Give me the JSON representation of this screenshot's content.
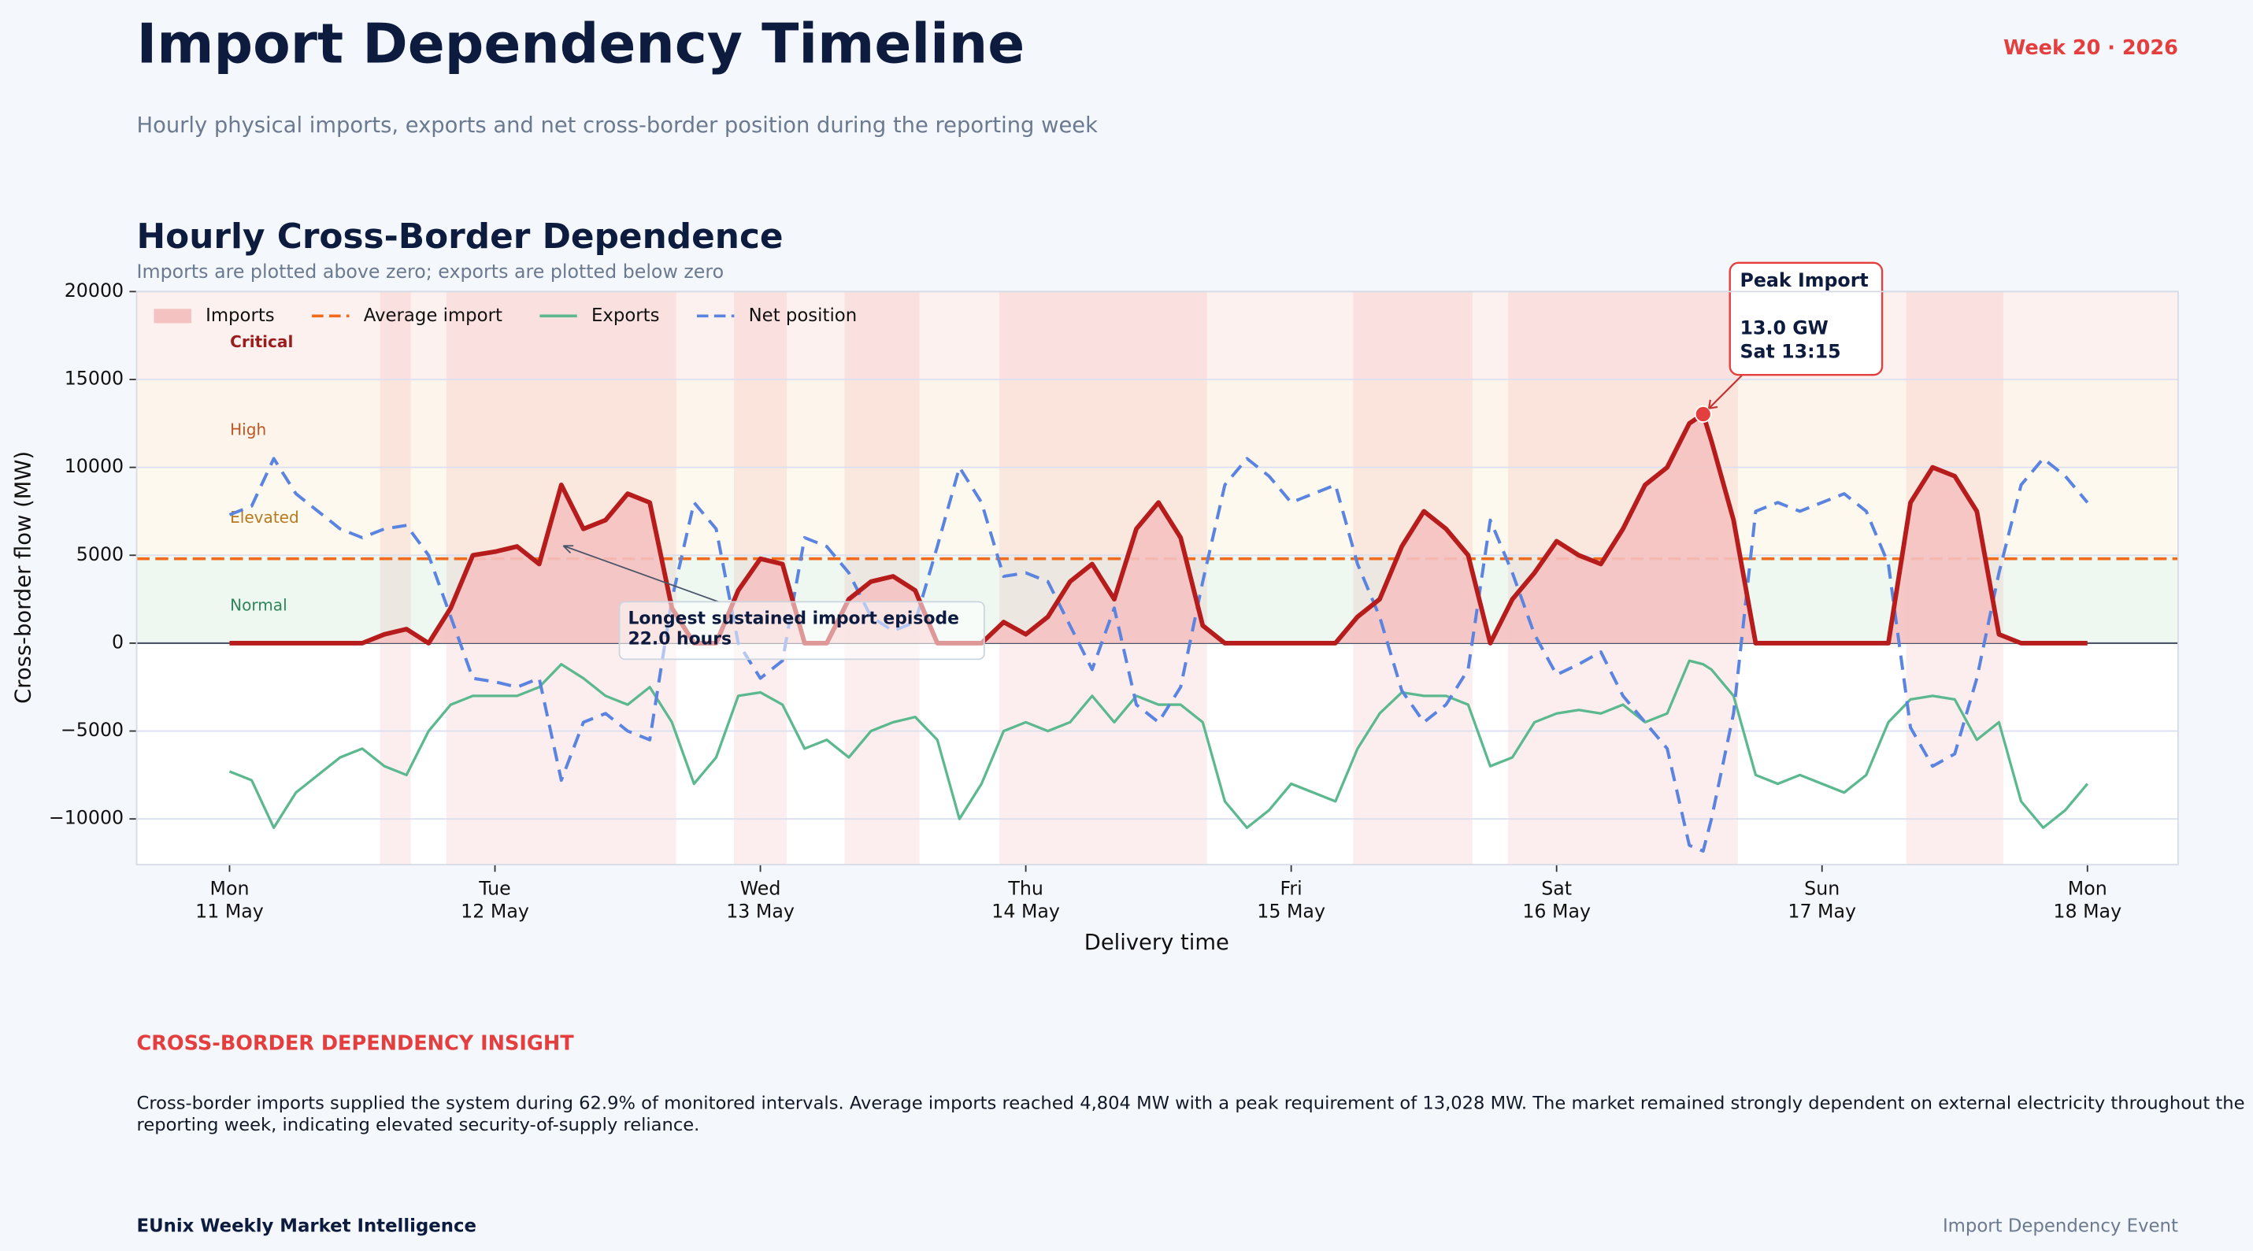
{
  "header": {
    "title": "Import Dependency Timeline",
    "badge": "Week 20 · 2026",
    "subtitle": "Hourly physical imports, exports and net cross-border position during the reporting week"
  },
  "chart_data": {
    "type": "line",
    "title": "Hourly Cross-Border Dependence",
    "subtitle": "Imports are plotted above zero; exports are plotted below zero",
    "x_label": "Delivery time",
    "y_label": "Cross-border flow (MW)",
    "xlim": [
      -8.4,
      176.2
    ],
    "ylim": [
      -12600,
      20000
    ],
    "xticks": [
      {
        "value": 0,
        "label": "Mon\n11 May"
      },
      {
        "value": 24,
        "label": "Tue\n12 May"
      },
      {
        "value": 48,
        "label": "Wed\n13 May"
      },
      {
        "value": 72,
        "label": "Thu\n14 May"
      },
      {
        "value": 96,
        "label": "Fri\n15 May"
      },
      {
        "value": 120,
        "label": "Sat\n16 May"
      },
      {
        "value": 144,
        "label": "Sun\n17 May"
      },
      {
        "value": 168,
        "label": "Mon\n18 May"
      }
    ],
    "yticks": [
      {
        "value": -10000,
        "label": "−10000"
      },
      {
        "value": -5000,
        "label": "−5000"
      },
      0,
      5000,
      10000,
      15000,
      20000
    ],
    "grid": true,
    "legend": "upper left",
    "zones": [
      {
        "label": "Normal",
        "from": 0,
        "to": 5000,
        "color": "#eef8f1",
        "text_color": "#2f855a"
      },
      {
        "label": "Elevated",
        "from": 5000,
        "to": 10000,
        "color": "#fdf9ee",
        "text_color": "#b7791f"
      },
      {
        "label": "High",
        "from": 10000,
        "to": 15000,
        "color": "#fdf4ec",
        "text_color": "#c05621"
      },
      {
        "label": "Critical",
        "from": 15000,
        "to": 20000,
        "color": "#fdf1ef",
        "text_color": "#9b1c1c"
      }
    ],
    "reference_line": {
      "name": "Average import",
      "value": 4804,
      "color": "#f26b1d"
    },
    "x": [
      0,
      2,
      4,
      6,
      8,
      10,
      12,
      14,
      16,
      18,
      20,
      22,
      24,
      26,
      28,
      30,
      32,
      34,
      36,
      38,
      40,
      42,
      44,
      46,
      48,
      50,
      52,
      54,
      56,
      58,
      60,
      62,
      64,
      66,
      68,
      70,
      72,
      74,
      76,
      78,
      80,
      82,
      84,
      86,
      88,
      90,
      92,
      94,
      96,
      98,
      100,
      102,
      104,
      106,
      108,
      110,
      112,
      114,
      116,
      118,
      120,
      122,
      124,
      126,
      128,
      130,
      132,
      133.25,
      134,
      136,
      138,
      140,
      142,
      144,
      146,
      148,
      150,
      152,
      154,
      156,
      158,
      160,
      162,
      164,
      166,
      168
    ],
    "series": [
      {
        "name": "Imports",
        "color": "#b71c1c",
        "fill": "#f5c2c2",
        "values": [
          0,
          0,
          0,
          0,
          0,
          0,
          0,
          500,
          800,
          0,
          2000,
          5000,
          5200,
          5500,
          4500,
          9000,
          6500,
          7000,
          8500,
          8000,
          2000,
          0,
          0,
          3000,
          4800,
          4500,
          0,
          0,
          2500,
          3500,
          3800,
          3000,
          0,
          0,
          0,
          1200,
          500,
          1500,
          3500,
          4500,
          2500,
          6500,
          8000,
          6000,
          1000,
          0,
          0,
          0,
          0,
          0,
          0,
          1500,
          2500,
          5500,
          7500,
          6500,
          5000,
          0,
          2500,
          4000,
          5800,
          5000,
          4500,
          6500,
          9000,
          10000,
          12500,
          13028,
          11500,
          7000,
          0,
          0,
          0,
          0,
          0,
          0,
          0,
          8000,
          10000,
          9500,
          7500,
          500,
          0,
          0,
          0,
          0
        ]
      },
      {
        "name": "Exports",
        "color": "#5cb88f",
        "values": [
          -7300,
          -7800,
          -10500,
          -8500,
          -7500,
          -6500,
          -6000,
          -7000,
          -7500,
          -5000,
          -3500,
          -3000,
          -3000,
          -3000,
          -2500,
          -1200,
          -2000,
          -3000,
          -3500,
          -2500,
          -4500,
          -8000,
          -6500,
          -3000,
          -2800,
          -3500,
          -6000,
          -5500,
          -6500,
          -5000,
          -4500,
          -4200,
          -5500,
          -10000,
          -8000,
          -5000,
          -4500,
          -5000,
          -4500,
          -3000,
          -4500,
          -3000,
          -3500,
          -3500,
          -4500,
          -9000,
          -10500,
          -9500,
          -8000,
          -8500,
          -9000,
          -6000,
          -4000,
          -2800,
          -3000,
          -3000,
          -3500,
          -7000,
          -6500,
          -4500,
          -4000,
          -3800,
          -4000,
          -3500,
          -4500,
          -4000,
          -1000,
          -1200,
          -1500,
          -3000,
          -7500,
          -8000,
          -7500,
          -8000,
          -8500,
          -7500,
          -4500,
          -3200,
          -3000,
          -3200,
          -5500,
          -4500,
          -9000,
          -10500,
          -9500,
          -8000
        ]
      },
      {
        "name": "Net position",
        "color": "#5b84e0",
        "dashed": true,
        "values": [
          7300,
          7800,
          10500,
          8500,
          7500,
          6500,
          6000,
          6500,
          6700,
          5000,
          1500,
          -2000,
          -2200,
          -2500,
          -2000,
          -7800,
          -4500,
          -4000,
          -5000,
          -5500,
          2500,
          8000,
          6500,
          0,
          -2000,
          -1000,
          6000,
          5500,
          4000,
          1500,
          700,
          1200,
          5500,
          10000,
          8000,
          3800,
          4000,
          3500,
          1000,
          -1500,
          2000,
          -3500,
          -4500,
          -2500,
          3500,
          9000,
          10500,
          9500,
          8000,
          8500,
          9000,
          4500,
          1500,
          -2700,
          -4500,
          -3500,
          -1500,
          7000,
          4000,
          500,
          -1800,
          -1200,
          -500,
          -3000,
          -4500,
          -6000,
          -11500,
          -11828,
          -10000,
          -4000,
          7500,
          8000,
          7500,
          8000,
          8500,
          7500,
          4500,
          -4800,
          -7000,
          -6300,
          -2000,
          4000,
          9000,
          10500,
          9500,
          8000
        ]
      }
    ],
    "annotations": {
      "episode": [
        "Longest sustained import episode",
        "22.0 hours"
      ],
      "peak": {
        "title": "Peak Import",
        "lines": [
          "13.0 GW",
          "Sat 13:15"
        ]
      }
    }
  },
  "insight": {
    "heading": "CROSS-BORDER DEPENDENCY INSIGHT",
    "text": "Cross-border imports supplied the system during 62.9% of monitored intervals. Average imports reached 4,804 MW with a peak requirement of 13,028 MW. The market remained strongly dependent on external electricity throughout the reporting week, indicating elevated security-of-supply reliance."
  },
  "footer": {
    "left": "EUnix Weekly Market Intelligence",
    "right": "Import Dependency Event"
  }
}
